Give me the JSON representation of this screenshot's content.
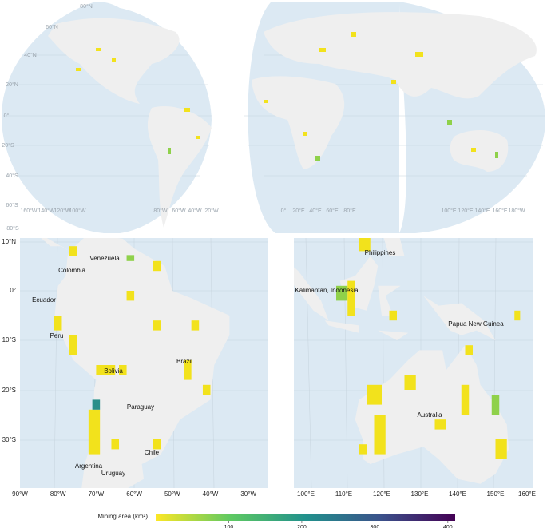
{
  "world_map": {
    "lat_labels": [
      "80°N",
      "60°N",
      "40°N",
      "20°N",
      "0°",
      "20°S",
      "40°S",
      "60°S",
      "80°S"
    ],
    "lon_labels": [
      "160°W",
      "140°W",
      "120°W",
      "100°W",
      "80°W",
      "60°W",
      "40°W",
      "20°W",
      "0°",
      "20°E",
      "40°E",
      "60°E",
      "80°E",
      "100°E",
      "120°E",
      "140°E",
      "160°E",
      "180°W"
    ]
  },
  "south_america": {
    "lat_labels": [
      "10°N",
      "0°",
      "10°S",
      "20°S",
      "30°S"
    ],
    "lon_labels": [
      "90°W",
      "80°W",
      "70°W",
      "60°W",
      "50°W",
      "40°W",
      "30°W"
    ],
    "places": [
      "Venezuela",
      "Colombia",
      "Ecuador",
      "Peru",
      "Bolivia",
      "Brazil",
      "Paraguay",
      "Chile",
      "Argentina",
      "Uruguay"
    ]
  },
  "oceania": {
    "lon_labels": [
      "100°E",
      "110°E",
      "120°E",
      "130°E",
      "140°E",
      "150°E",
      "160°E"
    ],
    "places": [
      "Philippines",
      "Kalimantan, Indonesia",
      "Papua New Guinea",
      "Australia"
    ]
  },
  "colorbar": {
    "title": "Mining area (km²)",
    "lim": [
      0,
      410
    ],
    "ticks": [
      100,
      200,
      300,
      400
    ]
  }
}
